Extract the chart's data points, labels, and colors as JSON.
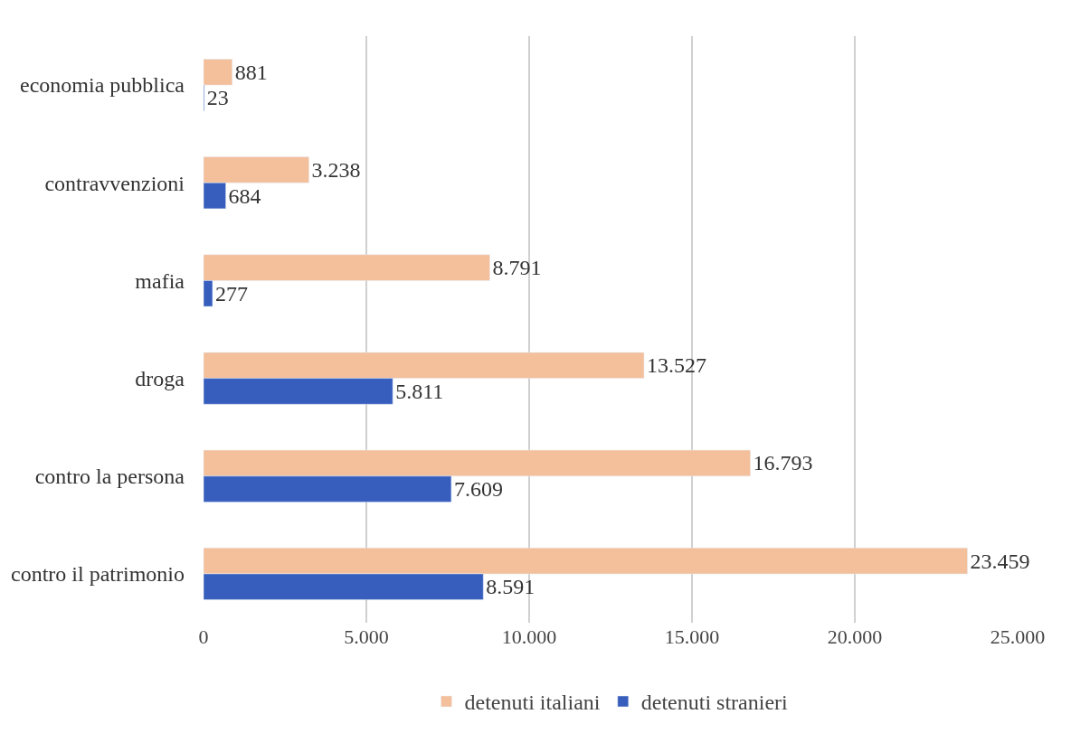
{
  "chart_data": {
    "type": "bar",
    "orientation": "horizontal",
    "categories": [
      "economia pubblica",
      "contravvenzioni",
      "mafia",
      "droga",
      "contro la persona",
      "contro il patrimonio"
    ],
    "series": [
      {
        "name": "detenuti italiani",
        "color": "#f4bf9b",
        "values": [
          881,
          3238,
          8791,
          13527,
          16793,
          23459
        ],
        "value_labels": [
          "881",
          "3.238",
          "8.791",
          "13.527",
          "16.793",
          "23.459"
        ]
      },
      {
        "name": "detenuti stranieri",
        "color": "#375ebd",
        "values": [
          23,
          684,
          277,
          5811,
          7609,
          8591
        ],
        "value_labels": [
          "23",
          "684",
          "277",
          "5.811",
          "7.609",
          "8.591"
        ]
      }
    ],
    "xlim": [
      0,
      25000
    ],
    "xticks": [
      0,
      {
        "value": 5000,
        "label": "5.000"
      },
      {
        "value": 10000,
        "label": "10.000"
      },
      {
        "value": 15000,
        "label": "15.000"
      },
      {
        "value": 20000,
        "label": "20.000"
      },
      {
        "value": 25000,
        "label": "25.000"
      }
    ],
    "grid": "x",
    "legend": "bottom"
  }
}
